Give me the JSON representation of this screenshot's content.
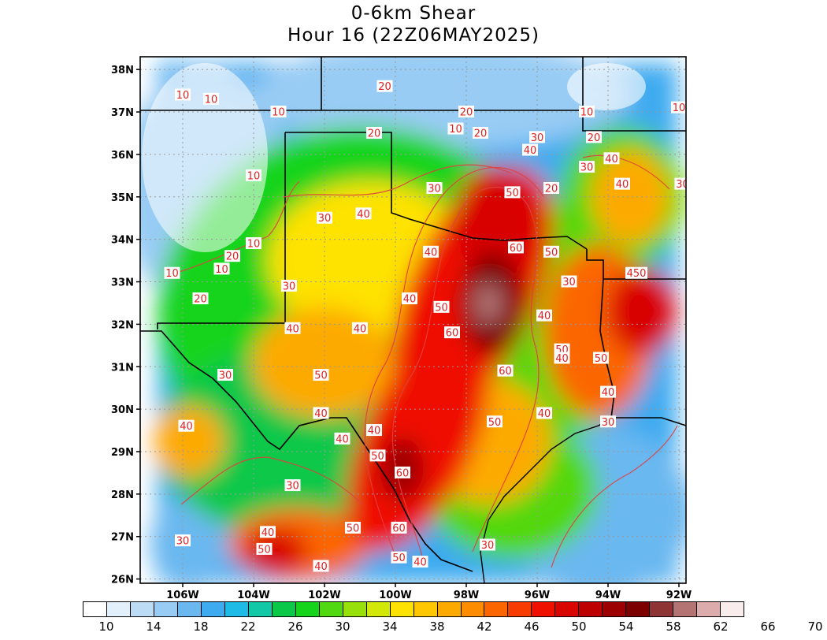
{
  "title": {
    "line1": "0-6km Shear",
    "line2": "Hour 16 (22Z06MAY2025)"
  },
  "map": {
    "lat_labels": [
      "38N",
      "37N",
      "36N",
      "35N",
      "34N",
      "33N",
      "32N",
      "31N",
      "30N",
      "29N",
      "28N",
      "27N",
      "26N"
    ],
    "lat_values": [
      38,
      37,
      36,
      35,
      34,
      33,
      32,
      31,
      30,
      29,
      28,
      27,
      26
    ],
    "lon_labels": [
      "106W",
      "104W",
      "102W",
      "100W",
      "98W",
      "96W",
      "94W",
      "92W"
    ],
    "lon_values": [
      -106,
      -104,
      -102,
      -100,
      -98,
      -96,
      -94,
      -92
    ],
    "lon_range": [
      -107.2,
      -91.8
    ],
    "lat_range": [
      25.9,
      38.3
    ],
    "contour_labels": [
      {
        "text": "10",
        "lon": -106.0,
        "lat": 37.4
      },
      {
        "text": "10",
        "lon": -105.2,
        "lat": 37.3
      },
      {
        "text": "10",
        "lon": -103.3,
        "lat": 37.0
      },
      {
        "text": "20",
        "lon": -100.3,
        "lat": 37.6
      },
      {
        "text": "20",
        "lon": -98.0,
        "lat": 37.0
      },
      {
        "text": "10",
        "lon": -94.6,
        "lat": 37.0
      },
      {
        "text": "10",
        "lon": -92.0,
        "lat": 37.1
      },
      {
        "text": "10",
        "lon": -98.3,
        "lat": 36.6
      },
      {
        "text": "20",
        "lon": -97.6,
        "lat": 36.5
      },
      {
        "text": "20",
        "lon": -100.6,
        "lat": 36.5
      },
      {
        "text": "30",
        "lon": -96.0,
        "lat": 36.4
      },
      {
        "text": "20",
        "lon": -94.4,
        "lat": 36.4
      },
      {
        "text": "40",
        "lon": -96.2,
        "lat": 36.1
      },
      {
        "text": "30",
        "lon": -94.6,
        "lat": 35.7
      },
      {
        "text": "40",
        "lon": -93.9,
        "lat": 35.9
      },
      {
        "text": "10",
        "lon": -104.0,
        "lat": 35.5
      },
      {
        "text": "20",
        "lon": -95.6,
        "lat": 35.2
      },
      {
        "text": "40",
        "lon": -93.6,
        "lat": 35.3
      },
      {
        "text": "30",
        "lon": -91.9,
        "lat": 35.3
      },
      {
        "text": "50",
        "lon": -96.7,
        "lat": 35.1
      },
      {
        "text": "30",
        "lon": -98.9,
        "lat": 35.2
      },
      {
        "text": "40",
        "lon": -100.9,
        "lat": 34.6
      },
      {
        "text": "30",
        "lon": -102.0,
        "lat": 34.5
      },
      {
        "text": "10",
        "lon": -104.0,
        "lat": 33.9
      },
      {
        "text": "20",
        "lon": -104.6,
        "lat": 33.6
      },
      {
        "text": "10",
        "lon": -104.9,
        "lat": 33.3
      },
      {
        "text": "10",
        "lon": -106.3,
        "lat": 33.2
      },
      {
        "text": "60",
        "lon": -96.6,
        "lat": 33.8
      },
      {
        "text": "50",
        "lon": -95.6,
        "lat": 33.7
      },
      {
        "text": "40",
        "lon": -99.0,
        "lat": 33.7
      },
      {
        "text": "30",
        "lon": -95.1,
        "lat": 33.0
      },
      {
        "text": "450",
        "lon": -93.2,
        "lat": 33.2
      },
      {
        "text": "20",
        "lon": -105.5,
        "lat": 32.6
      },
      {
        "text": "30",
        "lon": -103.0,
        "lat": 32.9
      },
      {
        "text": "40",
        "lon": -99.6,
        "lat": 32.6
      },
      {
        "text": "50",
        "lon": -98.7,
        "lat": 32.4
      },
      {
        "text": "40",
        "lon": -95.8,
        "lat": 32.2
      },
      {
        "text": "40",
        "lon": -102.9,
        "lat": 31.9
      },
      {
        "text": "40",
        "lon": -101.0,
        "lat": 31.9
      },
      {
        "text": "60",
        "lon": -98.4,
        "lat": 31.8
      },
      {
        "text": "50",
        "lon": -95.3,
        "lat": 31.4
      },
      {
        "text": "40",
        "lon": -95.3,
        "lat": 31.2
      },
      {
        "text": "50",
        "lon": -94.2,
        "lat": 31.2
      },
      {
        "text": "60",
        "lon": -96.9,
        "lat": 30.9
      },
      {
        "text": "30",
        "lon": -104.8,
        "lat": 30.8
      },
      {
        "text": "50",
        "lon": -102.1,
        "lat": 30.8
      },
      {
        "text": "40",
        "lon": -94.0,
        "lat": 30.4
      },
      {
        "text": "40",
        "lon": -102.1,
        "lat": 29.9
      },
      {
        "text": "40",
        "lon": -95.8,
        "lat": 29.9
      },
      {
        "text": "50",
        "lon": -97.2,
        "lat": 29.7
      },
      {
        "text": "30",
        "lon": -94.0,
        "lat": 29.7
      },
      {
        "text": "40",
        "lon": -105.9,
        "lat": 29.6
      },
      {
        "text": "40",
        "lon": -100.6,
        "lat": 29.5
      },
      {
        "text": "40",
        "lon": -101.5,
        "lat": 29.3
      },
      {
        "text": "50",
        "lon": -100.5,
        "lat": 28.9
      },
      {
        "text": "60",
        "lon": -99.8,
        "lat": 28.5
      },
      {
        "text": "30",
        "lon": -102.9,
        "lat": 28.2
      },
      {
        "text": "50",
        "lon": -101.2,
        "lat": 27.2
      },
      {
        "text": "60",
        "lon": -99.9,
        "lat": 27.2
      },
      {
        "text": "40",
        "lon": -103.6,
        "lat": 27.1
      },
      {
        "text": "30",
        "lon": -97.4,
        "lat": 26.8
      },
      {
        "text": "50",
        "lon": -103.7,
        "lat": 26.7
      },
      {
        "text": "30",
        "lon": -106.0,
        "lat": 26.9
      },
      {
        "text": "50",
        "lon": -99.9,
        "lat": 26.5
      },
      {
        "text": "40",
        "lon": -99.3,
        "lat": 26.4
      },
      {
        "text": "40",
        "lon": -102.1,
        "lat": 26.3
      }
    ]
  },
  "legend": {
    "tick_labels": [
      "10",
      "14",
      "18",
      "22",
      "26",
      "30",
      "34",
      "38",
      "42",
      "46",
      "50",
      "54",
      "58",
      "62",
      "66",
      "70"
    ],
    "colors": [
      "#ffffff",
      "#e2f0fb",
      "#bcdcf6",
      "#98ccf4",
      "#6bb8f0",
      "#3eaaf0",
      "#1ebbe6",
      "#12c8a6",
      "#0cc848",
      "#16d41c",
      "#52d810",
      "#98e00a",
      "#d2e806",
      "#fee204",
      "#fec700",
      "#fdaa00",
      "#fd8c00",
      "#fc6600",
      "#f83c00",
      "#ef1000",
      "#d90500",
      "#bd0000",
      "#9c0000",
      "#7c0000",
      "#8e3434",
      "#b57474",
      "#dcabab",
      "#f8ecec"
    ]
  }
}
